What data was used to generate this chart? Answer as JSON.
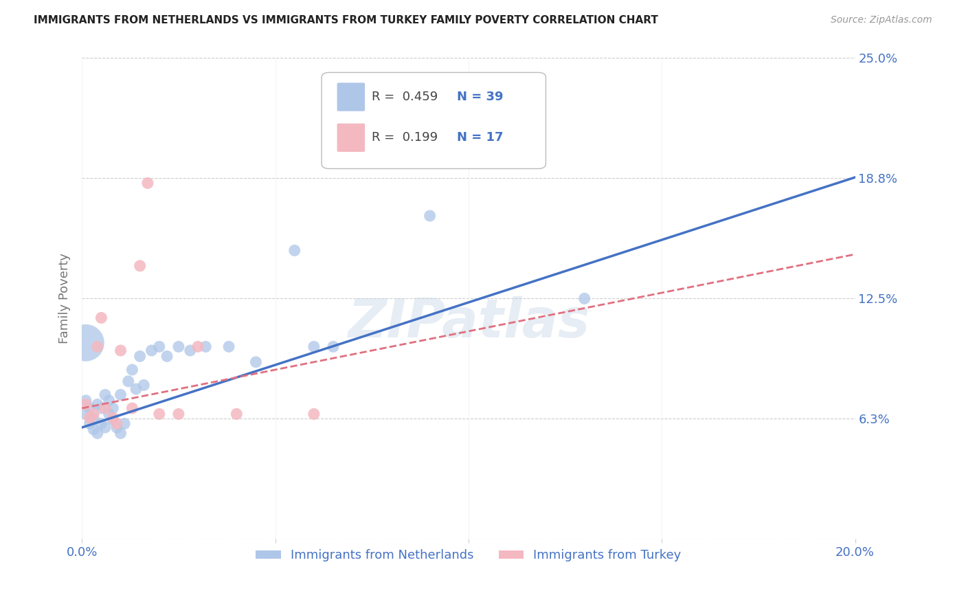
{
  "title": "IMMIGRANTS FROM NETHERLANDS VS IMMIGRANTS FROM TURKEY FAMILY POVERTY CORRELATION CHART",
  "source": "Source: ZipAtlas.com",
  "ylabel": "Family Poverty",
  "xlim": [
    0.0,
    0.2
  ],
  "ylim": [
    0.0,
    0.25
  ],
  "yticks": [
    0.0,
    0.0625,
    0.125,
    0.1875,
    0.25
  ],
  "ytick_labels": [
    "",
    "6.3%",
    "12.5%",
    "18.8%",
    "25.0%"
  ],
  "xticks": [
    0.0,
    0.05,
    0.1,
    0.15,
    0.2
  ],
  "xtick_labels": [
    "0.0%",
    "",
    "",
    "",
    "20.0%"
  ],
  "netherlands_color": "#aec6e8",
  "turkey_color": "#f4b8c1",
  "netherlands_line_color": "#4472c4",
  "turkey_line_color": "#e07080",
  "label_color": "#4472c4",
  "watermark": "ZIPatlas",
  "legend_R1": "R = 0.459",
  "legend_N1": "N = 39",
  "legend_R2": "R = 0.199",
  "legend_N2": "N = 17",
  "nl_line_x0": 0.0,
  "nl_line_y0": 0.058,
  "nl_line_x1": 0.2,
  "nl_line_y1": 0.188,
  "tr_line_x0": 0.0,
  "tr_line_y0": 0.068,
  "tr_line_x1": 0.2,
  "tr_line_y1": 0.148,
  "netherlands_x": [
    0.001,
    0.001,
    0.002,
    0.002,
    0.003,
    0.003,
    0.004,
    0.004,
    0.005,
    0.005,
    0.006,
    0.006,
    0.007,
    0.007,
    0.008,
    0.008,
    0.009,
    0.01,
    0.01,
    0.011,
    0.012,
    0.013,
    0.014,
    0.015,
    0.016,
    0.018,
    0.02,
    0.022,
    0.025,
    0.028,
    0.032,
    0.038,
    0.045,
    0.055,
    0.06,
    0.065,
    0.09,
    0.13,
    0.001
  ],
  "netherlands_y": [
    0.072,
    0.065,
    0.068,
    0.06,
    0.063,
    0.057,
    0.07,
    0.055,
    0.068,
    0.06,
    0.075,
    0.058,
    0.072,
    0.065,
    0.062,
    0.068,
    0.058,
    0.055,
    0.075,
    0.06,
    0.082,
    0.088,
    0.078,
    0.095,
    0.08,
    0.098,
    0.1,
    0.095,
    0.1,
    0.098,
    0.1,
    0.1,
    0.092,
    0.15,
    0.1,
    0.1,
    0.168,
    0.125,
    0.102
  ],
  "netherlands_sizes": [
    150,
    150,
    150,
    150,
    150,
    150,
    150,
    150,
    150,
    150,
    150,
    150,
    150,
    150,
    150,
    150,
    150,
    150,
    150,
    150,
    150,
    150,
    150,
    150,
    150,
    150,
    150,
    150,
    150,
    150,
    150,
    150,
    150,
    150,
    150,
    150,
    150,
    150,
    1500
  ],
  "turkey_x": [
    0.001,
    0.002,
    0.003,
    0.004,
    0.005,
    0.006,
    0.008,
    0.009,
    0.01,
    0.013,
    0.015,
    0.017,
    0.02,
    0.025,
    0.03,
    0.04,
    0.06
  ],
  "turkey_y": [
    0.07,
    0.063,
    0.065,
    0.1,
    0.115,
    0.068,
    0.063,
    0.06,
    0.098,
    0.068,
    0.142,
    0.185,
    0.065,
    0.065,
    0.1,
    0.065,
    0.065
  ],
  "turkey_sizes": [
    150,
    150,
    150,
    150,
    150,
    150,
    150,
    150,
    150,
    150,
    150,
    150,
    150,
    150,
    150,
    150,
    150
  ]
}
